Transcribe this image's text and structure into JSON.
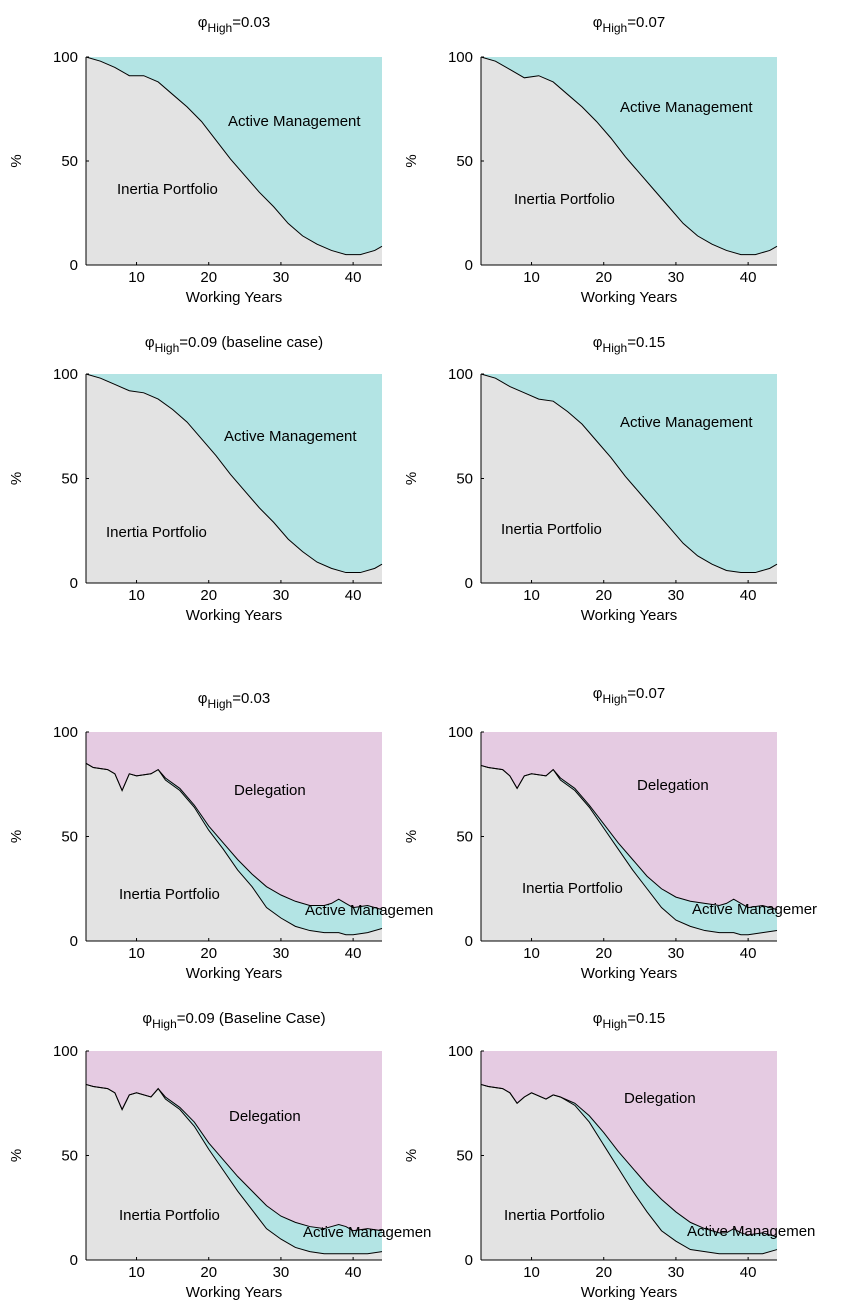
{
  "colors": {
    "inertia": "#e3e3e3",
    "active": "#b3e4e4",
    "delegation": "#e5cbe2",
    "line": "#000000"
  },
  "chart_data": [
    {
      "type": "area",
      "title_base": "φ",
      "title_sub": "High",
      "title_rest": "=0.03",
      "xlabel": "Working Years",
      "ylabel": "%",
      "xlim": [
        3,
        44
      ],
      "ylim": [
        0,
        100
      ],
      "xticks": [
        "10",
        "20",
        "30",
        "40"
      ],
      "yticks": [
        "0",
        "50",
        "100"
      ],
      "x": [
        3,
        5,
        7,
        9,
        11,
        13,
        15,
        17,
        19,
        21,
        23,
        25,
        27,
        29,
        31,
        33,
        35,
        37,
        39,
        41,
        43,
        44
      ],
      "series": [
        {
          "values": [
            100,
            98,
            95,
            91,
            91,
            88,
            82,
            76,
            69,
            60,
            51,
            43,
            35,
            28,
            20,
            14,
            10,
            7,
            5,
            5,
            7,
            9
          ]
        }
      ],
      "labels": {
        "upper": "Active Management",
        "lower": "Inertia Portfolio"
      }
    },
    {
      "type": "area",
      "title_base": "φ",
      "title_sub": "High",
      "title_rest": "=0.07",
      "xlabel": "Working Years",
      "ylabel": "%",
      "xlim": [
        3,
        44
      ],
      "ylim": [
        0,
        100
      ],
      "xticks": [
        "10",
        "20",
        "30",
        "40"
      ],
      "yticks": [
        "0",
        "50",
        "100"
      ],
      "x": [
        3,
        5,
        7,
        9,
        11,
        13,
        15,
        17,
        19,
        21,
        23,
        25,
        27,
        29,
        31,
        33,
        35,
        37,
        39,
        41,
        43,
        44
      ],
      "series": [
        {
          "values": [
            100,
            98,
            94,
            90,
            91,
            88,
            82,
            76,
            69,
            61,
            52,
            44,
            36,
            28,
            20,
            14,
            10,
            7,
            5,
            5,
            7,
            9
          ]
        }
      ],
      "labels": {
        "upper": "Active Management",
        "lower": "Inertia Portfolio"
      }
    },
    {
      "type": "area",
      "title_base": "φ",
      "title_sub": "High",
      "title_rest": "=0.09 (baseline case)",
      "xlabel": "Working Years",
      "ylabel": "%",
      "xlim": [
        3,
        44
      ],
      "ylim": [
        0,
        100
      ],
      "xticks": [
        "10",
        "20",
        "30",
        "40"
      ],
      "yticks": [
        "0",
        "50",
        "100"
      ],
      "x": [
        3,
        5,
        7,
        9,
        11,
        13,
        15,
        17,
        19,
        21,
        23,
        25,
        27,
        29,
        31,
        33,
        35,
        37,
        39,
        41,
        43,
        44
      ],
      "series": [
        {
          "values": [
            100,
            98,
            95,
            92,
            91,
            88,
            83,
            77,
            69,
            61,
            52,
            44,
            36,
            29,
            21,
            15,
            10,
            7,
            5,
            5,
            7,
            9
          ]
        }
      ],
      "labels": {
        "upper": "Active Management",
        "lower": "Inertia Portfolio"
      }
    },
    {
      "type": "area",
      "title_base": "φ",
      "title_sub": "High",
      "title_rest": "=0.15",
      "xlabel": "Working Years",
      "ylabel": "%",
      "xlim": [
        3,
        44
      ],
      "ylim": [
        0,
        100
      ],
      "xticks": [
        "10",
        "20",
        "30",
        "40"
      ],
      "yticks": [
        "0",
        "50",
        "100"
      ],
      "x": [
        3,
        5,
        7,
        9,
        11,
        13,
        15,
        17,
        19,
        21,
        23,
        25,
        27,
        29,
        31,
        33,
        35,
        37,
        39,
        41,
        43,
        44
      ],
      "series": [
        {
          "values": [
            100,
            98,
            94,
            91,
            88,
            87,
            82,
            76,
            68,
            60,
            51,
            43,
            35,
            27,
            19,
            13,
            9,
            6,
            5,
            5,
            7,
            9
          ]
        }
      ],
      "labels": {
        "upper": "Active Management",
        "lower": "Inertia Portfolio"
      }
    },
    {
      "type": "area",
      "title_base": "φ",
      "title_sub": "High",
      "title_rest": "=0.03",
      "xlabel": "Working Years",
      "ylabel": "%",
      "xlim": [
        3,
        44
      ],
      "ylim": [
        0,
        100
      ],
      "xticks": [
        "10",
        "20",
        "30",
        "40"
      ],
      "yticks": [
        "0",
        "50",
        "100"
      ],
      "x": [
        3,
        4,
        6,
        7,
        8,
        9,
        10,
        12,
        13,
        14,
        16,
        18,
        20,
        22,
        24,
        26,
        28,
        30,
        32,
        34,
        36,
        37,
        38,
        39,
        40,
        42,
        44
      ],
      "series": [
        {
          "values": [
            85,
            83,
            82,
            80,
            72,
            80,
            79,
            80,
            82,
            77,
            72,
            64,
            53,
            44,
            34,
            26,
            16,
            11,
            7,
            5,
            4,
            4,
            4,
            3,
            3,
            4,
            6
          ]
        },
        {
          "values": [
            85,
            83,
            82,
            80,
            72,
            80,
            79,
            80,
            82,
            78,
            73,
            65,
            55,
            47,
            39,
            32,
            26,
            22,
            19,
            17,
            17,
            18,
            20,
            18,
            16,
            17,
            15
          ]
        }
      ],
      "labels": {
        "upper": "Delegation",
        "lower": "Inertia Portfolio",
        "middle": "Active Managemen"
      }
    },
    {
      "type": "area",
      "title_base": "φ",
      "title_sub": "High",
      "title_rest": "=0.07",
      "xlabel": "Working Years",
      "ylabel": "%",
      "xlim": [
        3,
        44
      ],
      "ylim": [
        0,
        100
      ],
      "xticks": [
        "10",
        "20",
        "30",
        "40"
      ],
      "yticks": [
        "0",
        "50",
        "100"
      ],
      "x": [
        3,
        4,
        6,
        7,
        8,
        9,
        10,
        12,
        13,
        14,
        16,
        18,
        20,
        22,
        24,
        26,
        28,
        30,
        32,
        34,
        36,
        37,
        38,
        39,
        40,
        42,
        44
      ],
      "series": [
        {
          "values": [
            84,
            83,
            82,
            79,
            73,
            79,
            80,
            79,
            82,
            77,
            72,
            64,
            54,
            44,
            34,
            25,
            16,
            10,
            7,
            5,
            4,
            4,
            4,
            3,
            3,
            4,
            5
          ]
        },
        {
          "values": [
            84,
            83,
            82,
            79,
            73,
            79,
            80,
            79,
            82,
            78,
            73,
            65,
            56,
            47,
            39,
            31,
            25,
            21,
            19,
            18,
            17,
            18,
            20,
            18,
            16,
            17,
            15
          ]
        }
      ],
      "labels": {
        "upper": "Delegation",
        "lower": "Inertia Portfolio",
        "middle": "Active Managemer"
      }
    },
    {
      "type": "area",
      "title_base": "φ",
      "title_sub": "High",
      "title_rest": "=0.09 (Baseline Case)",
      "xlabel": "Working Years",
      "ylabel": "%",
      "xlim": [
        3,
        44
      ],
      "ylim": [
        0,
        100
      ],
      "xticks": [
        "10",
        "20",
        "30",
        "40"
      ],
      "yticks": [
        "0",
        "50",
        "100"
      ],
      "x": [
        3,
        4,
        6,
        7,
        8,
        9,
        10,
        12,
        13,
        14,
        16,
        18,
        20,
        22,
        24,
        26,
        28,
        30,
        32,
        34,
        36,
        37,
        38,
        39,
        40,
        42,
        44
      ],
      "series": [
        {
          "values": [
            84,
            83,
            82,
            80,
            72,
            79,
            80,
            78,
            82,
            77,
            72,
            64,
            53,
            43,
            33,
            24,
            15,
            10,
            6,
            4,
            3,
            3,
            3,
            3,
            3,
            3,
            4
          ]
        },
        {
          "values": [
            84,
            83,
            82,
            80,
            72,
            79,
            80,
            78,
            82,
            78,
            73,
            66,
            56,
            48,
            40,
            33,
            26,
            21,
            18,
            16,
            15,
            16,
            17,
            16,
            14,
            15,
            14
          ]
        }
      ],
      "labels": {
        "upper": "Delegation",
        "lower": "Inertia Portfolio",
        "middle": "Active Managemen"
      }
    },
    {
      "type": "area",
      "title_base": "φ",
      "title_sub": "High",
      "title_rest": "=0.15",
      "xlabel": "Working Years",
      "ylabel": "%",
      "xlim": [
        3,
        44
      ],
      "ylim": [
        0,
        100
      ],
      "xticks": [
        "10",
        "20",
        "30",
        "40"
      ],
      "yticks": [
        "0",
        "50",
        "100"
      ],
      "x": [
        3,
        4,
        6,
        7,
        8,
        9,
        10,
        12,
        13,
        14,
        16,
        18,
        20,
        22,
        24,
        26,
        28,
        30,
        32,
        34,
        36,
        37,
        38,
        39,
        40,
        42,
        44
      ],
      "series": [
        {
          "values": [
            84,
            83,
            82,
            80,
            75,
            78,
            80,
            77,
            79,
            78,
            74,
            66,
            55,
            44,
            33,
            23,
            14,
            9,
            5,
            4,
            3,
            3,
            3,
            3,
            3,
            3,
            5
          ]
        },
        {
          "values": [
            84,
            83,
            82,
            80,
            75,
            78,
            80,
            77,
            79,
            78,
            75,
            69,
            61,
            52,
            44,
            36,
            29,
            23,
            18,
            15,
            13,
            13,
            15,
            13,
            12,
            13,
            11
          ]
        }
      ],
      "labels": {
        "upper": "Delegation",
        "lower": "Inertia Portfolio",
        "middle": "Active Managemen"
      }
    }
  ]
}
